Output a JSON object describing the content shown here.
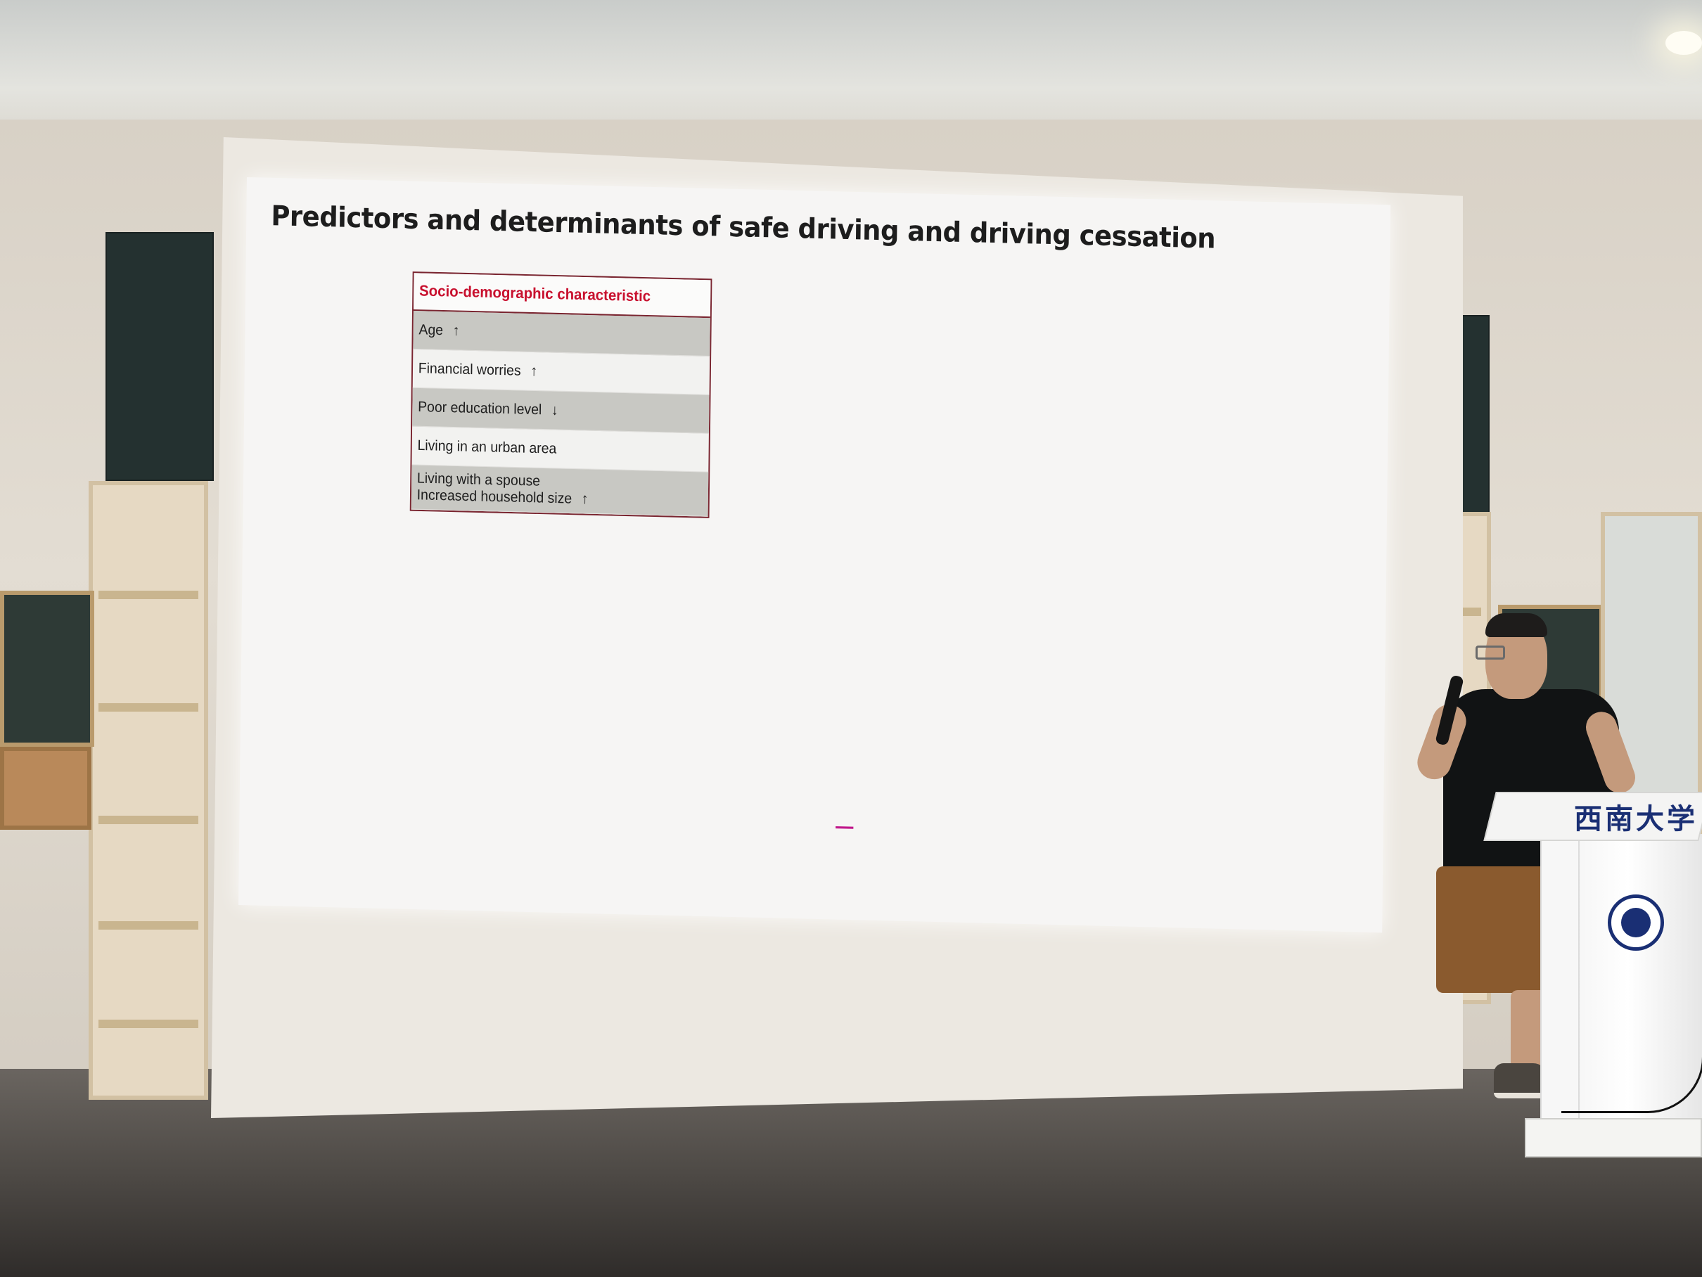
{
  "slide": {
    "title": "Predictors and determinants of safe driving and driving cessation",
    "table": {
      "header": "Socio-demographic characteristic",
      "rows": [
        {
          "lines": [
            {
              "text": "Age",
              "arrow": "↑"
            }
          ],
          "shaded": true
        },
        {
          "lines": [
            {
              "text": "Financial worries",
              "arrow": "↑"
            }
          ],
          "shaded": false
        },
        {
          "lines": [
            {
              "text": "Poor education level",
              "arrow": "↓"
            }
          ],
          "shaded": true
        },
        {
          "lines": [
            {
              "text": "Living in an urban area",
              "arrow": ""
            }
          ],
          "shaded": false
        },
        {
          "lines": [
            {
              "text": "Living with a spouse",
              "arrow": ""
            },
            {
              "text": "Increased household size",
              "arrow": "↑"
            }
          ],
          "shaded": true
        }
      ]
    },
    "colors": {
      "header_text": "#c8102e",
      "table_border": "#7a2530",
      "shaded_row": "#c8c8c3"
    }
  },
  "lectern": {
    "sign": "西南大学"
  }
}
